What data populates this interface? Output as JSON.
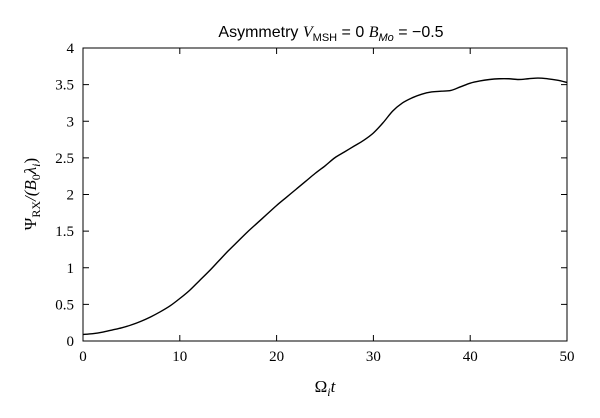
{
  "chart_data": {
    "type": "line",
    "title": {
      "prefix": "Asymmetry ",
      "v_symbol": "V",
      "v_sub": "MSH",
      "v_eq": " = 0 ",
      "b_symbol": "B",
      "b_sub": "Mo",
      "b_eq": " = −0.5"
    },
    "xlabel": {
      "main": "Ω",
      "sub": "i",
      "rest": "t"
    },
    "ylabel": {
      "main": "Ψ",
      "sub1": "RX",
      "mid": "/(B",
      "sub2": "0",
      "lam": "λ",
      "sub3": "i",
      "end": ")"
    },
    "xlim": [
      0,
      50
    ],
    "ylim": [
      0,
      4
    ],
    "x_ticks": [
      0,
      10,
      20,
      30,
      40,
      50
    ],
    "x_tick_labels": [
      "0",
      "10",
      "20",
      "30",
      "40",
      "50"
    ],
    "y_ticks": [
      0,
      0.5,
      1,
      1.5,
      2,
      2.5,
      3,
      3.5,
      4
    ],
    "y_tick_labels": [
      "0",
      "0.5",
      "1",
      "1.5",
      "2",
      "2.5",
      "3",
      "3.5",
      "4"
    ],
    "grid": false,
    "series": [
      {
        "x": [
          0,
          1,
          2,
          3,
          4,
          5,
          6,
          7,
          8,
          9,
          10,
          11,
          12,
          13,
          14,
          15,
          16,
          17,
          18,
          19,
          20,
          21,
          22,
          23,
          24,
          25,
          26,
          27,
          28,
          29,
          30,
          31,
          32,
          33,
          34,
          35,
          36,
          37,
          38,
          39,
          40,
          41,
          42,
          43,
          44,
          45,
          46,
          47,
          48,
          49,
          50
        ],
        "y": [
          0.09,
          0.1,
          0.12,
          0.15,
          0.18,
          0.22,
          0.27,
          0.33,
          0.4,
          0.48,
          0.58,
          0.69,
          0.82,
          0.95,
          1.09,
          1.23,
          1.36,
          1.49,
          1.61,
          1.73,
          1.85,
          1.96,
          2.07,
          2.18,
          2.29,
          2.39,
          2.5,
          2.58,
          2.66,
          2.74,
          2.84,
          2.98,
          3.14,
          3.25,
          3.32,
          3.37,
          3.4,
          3.41,
          3.42,
          3.47,
          3.52,
          3.55,
          3.57,
          3.58,
          3.58,
          3.57,
          3.58,
          3.59,
          3.58,
          3.56,
          3.53
        ]
      }
    ]
  }
}
